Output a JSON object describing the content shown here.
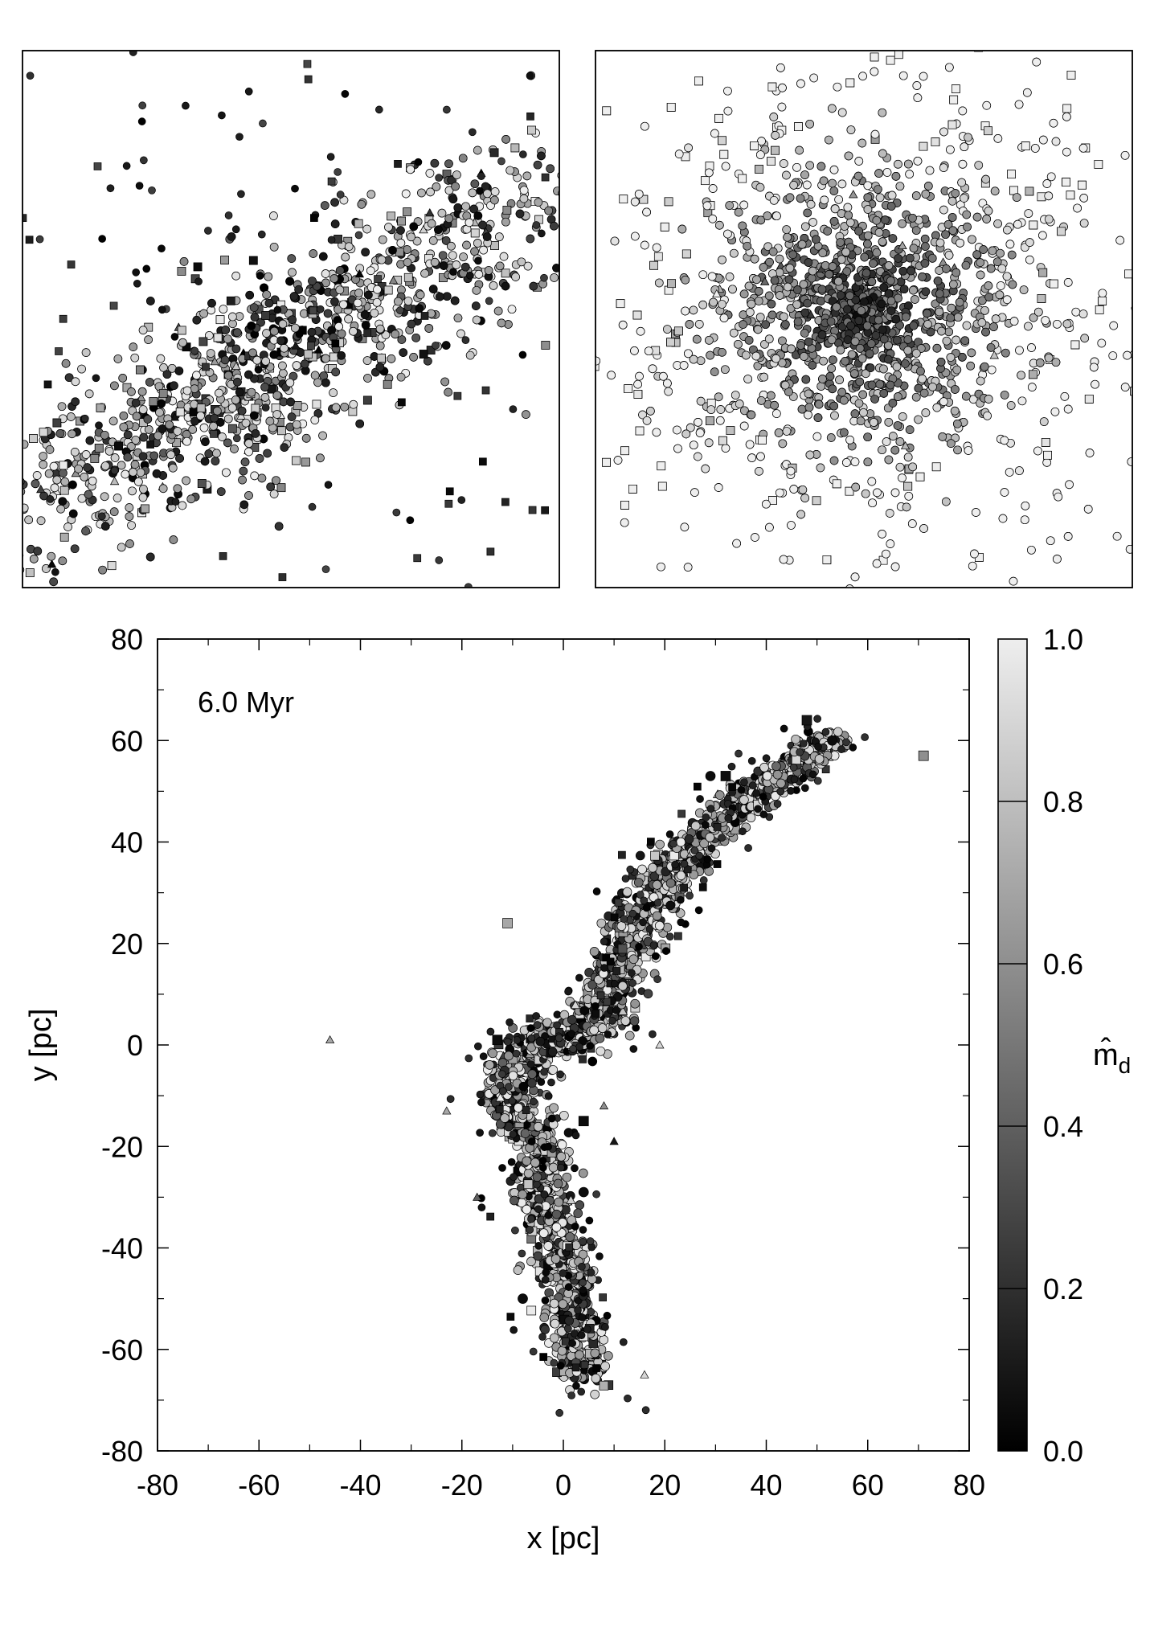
{
  "chart_data": [
    {
      "panel": "top-left zoom",
      "type": "scatter",
      "axes_labels_shown": false,
      "ticks_shown": false,
      "description_of_distribution": {
        "main_band": {
          "shape": "elongated band",
          "orientation_deg": 32,
          "center_frac": [
            0.47,
            0.57
          ]
        },
        "dense_core_frac": [
          0.5,
          0.5
        ],
        "colormap": "grayscale, dark = low m_d, light = high m_d"
      },
      "marker_types": [
        "circle",
        "square",
        "triangle"
      ]
    },
    {
      "panel": "top-right zoom",
      "type": "scatter",
      "axes_labels_shown": false,
      "ticks_shown": false,
      "description_of_distribution": {
        "cluster": {
          "shape": "roughly round cloud",
          "center_frac": [
            0.5,
            0.48
          ]
        },
        "dark_core": true,
        "colormap": "grayscale, dark = low m_d, light = high m_d"
      },
      "marker_types": [
        "circle",
        "square",
        "triangle"
      ]
    },
    {
      "panel": "main",
      "type": "scatter",
      "annotation": "6.0 Myr",
      "xlabel": "x [pc]",
      "ylabel": "y [pc]",
      "xlim": [
        -80,
        80
      ],
      "ylim": [
        -80,
        80
      ],
      "xticks": [
        "-80",
        "-60",
        "-40",
        "-20",
        "0",
        "20",
        "40",
        "60",
        "80"
      ],
      "yticks": [
        "-80",
        "-60",
        "-40",
        "-20",
        "0",
        "20",
        "40",
        "60",
        "80"
      ],
      "xticks_minor_step": 10,
      "yticks_minor_step": 10,
      "tidal_stream_path": [
        [
          4,
          -65
        ],
        [
          3,
          -60
        ],
        [
          2,
          -52
        ],
        [
          1,
          -45
        ],
        [
          -1,
          -40
        ],
        [
          -3,
          -33
        ],
        [
          -5,
          -27
        ],
        [
          -4,
          -20
        ],
        [
          -8,
          -15
        ],
        [
          -11,
          -9
        ],
        [
          -9,
          -3
        ],
        [
          -4,
          0
        ],
        [
          1,
          1
        ],
        [
          6,
          4
        ],
        [
          9,
          9
        ],
        [
          11,
          15
        ],
        [
          14,
          22
        ],
        [
          17,
          28
        ],
        [
          20,
          33
        ],
        [
          25,
          38
        ],
        [
          30,
          44
        ],
        [
          36,
          48
        ],
        [
          42,
          53
        ],
        [
          48,
          57
        ],
        [
          54,
          60
        ]
      ],
      "outliers": [
        {
          "x": -46,
          "y": 1,
          "marker": "triangle",
          "shade": 0.7
        },
        {
          "x": -11,
          "y": 24,
          "marker": "square",
          "shade": 0.7
        },
        {
          "x": -23,
          "y": -13,
          "marker": "triangle",
          "shade": 0.7
        },
        {
          "x": -17,
          "y": -30,
          "marker": "triangle",
          "shade": 0.4
        },
        {
          "x": 19,
          "y": 0,
          "marker": "triangle",
          "shade": 0.9
        },
        {
          "x": 8,
          "y": -12,
          "marker": "triangle",
          "shade": 0.6
        },
        {
          "x": 10,
          "y": -19,
          "marker": "triangle",
          "shade": 0.1
        },
        {
          "x": 16,
          "y": -65,
          "marker": "triangle",
          "shade": 0.9
        },
        {
          "x": 71,
          "y": 57,
          "marker": "square",
          "shade": 0.6
        },
        {
          "x": 48,
          "y": 64,
          "marker": "square",
          "shade": 0.1
        },
        {
          "x": 53,
          "y": 60,
          "marker": "circle",
          "shade": 0.05
        },
        {
          "x": 4,
          "y": -15,
          "marker": "square",
          "shade": 0.05
        },
        {
          "x": -13,
          "y": 1,
          "marker": "square",
          "shade": 0.05
        },
        {
          "x": 4,
          "y": -29,
          "marker": "circle",
          "shade": 0.05
        },
        {
          "x": -8,
          "y": -50,
          "marker": "circle",
          "shade": 0.05
        },
        {
          "x": 32,
          "y": 53,
          "marker": "square",
          "shade": 0.05
        },
        {
          "x": 29,
          "y": 53,
          "marker": "circle",
          "shade": 0.05
        }
      ]
    }
  ],
  "colorbar": {
    "label": "m̂d",
    "label_main": "m̂",
    "label_sub": "d",
    "range": [
      0.0,
      1.0
    ],
    "ticks": [
      "0.0",
      "0.2",
      "0.4",
      "0.6",
      "0.8",
      "1.0"
    ]
  }
}
